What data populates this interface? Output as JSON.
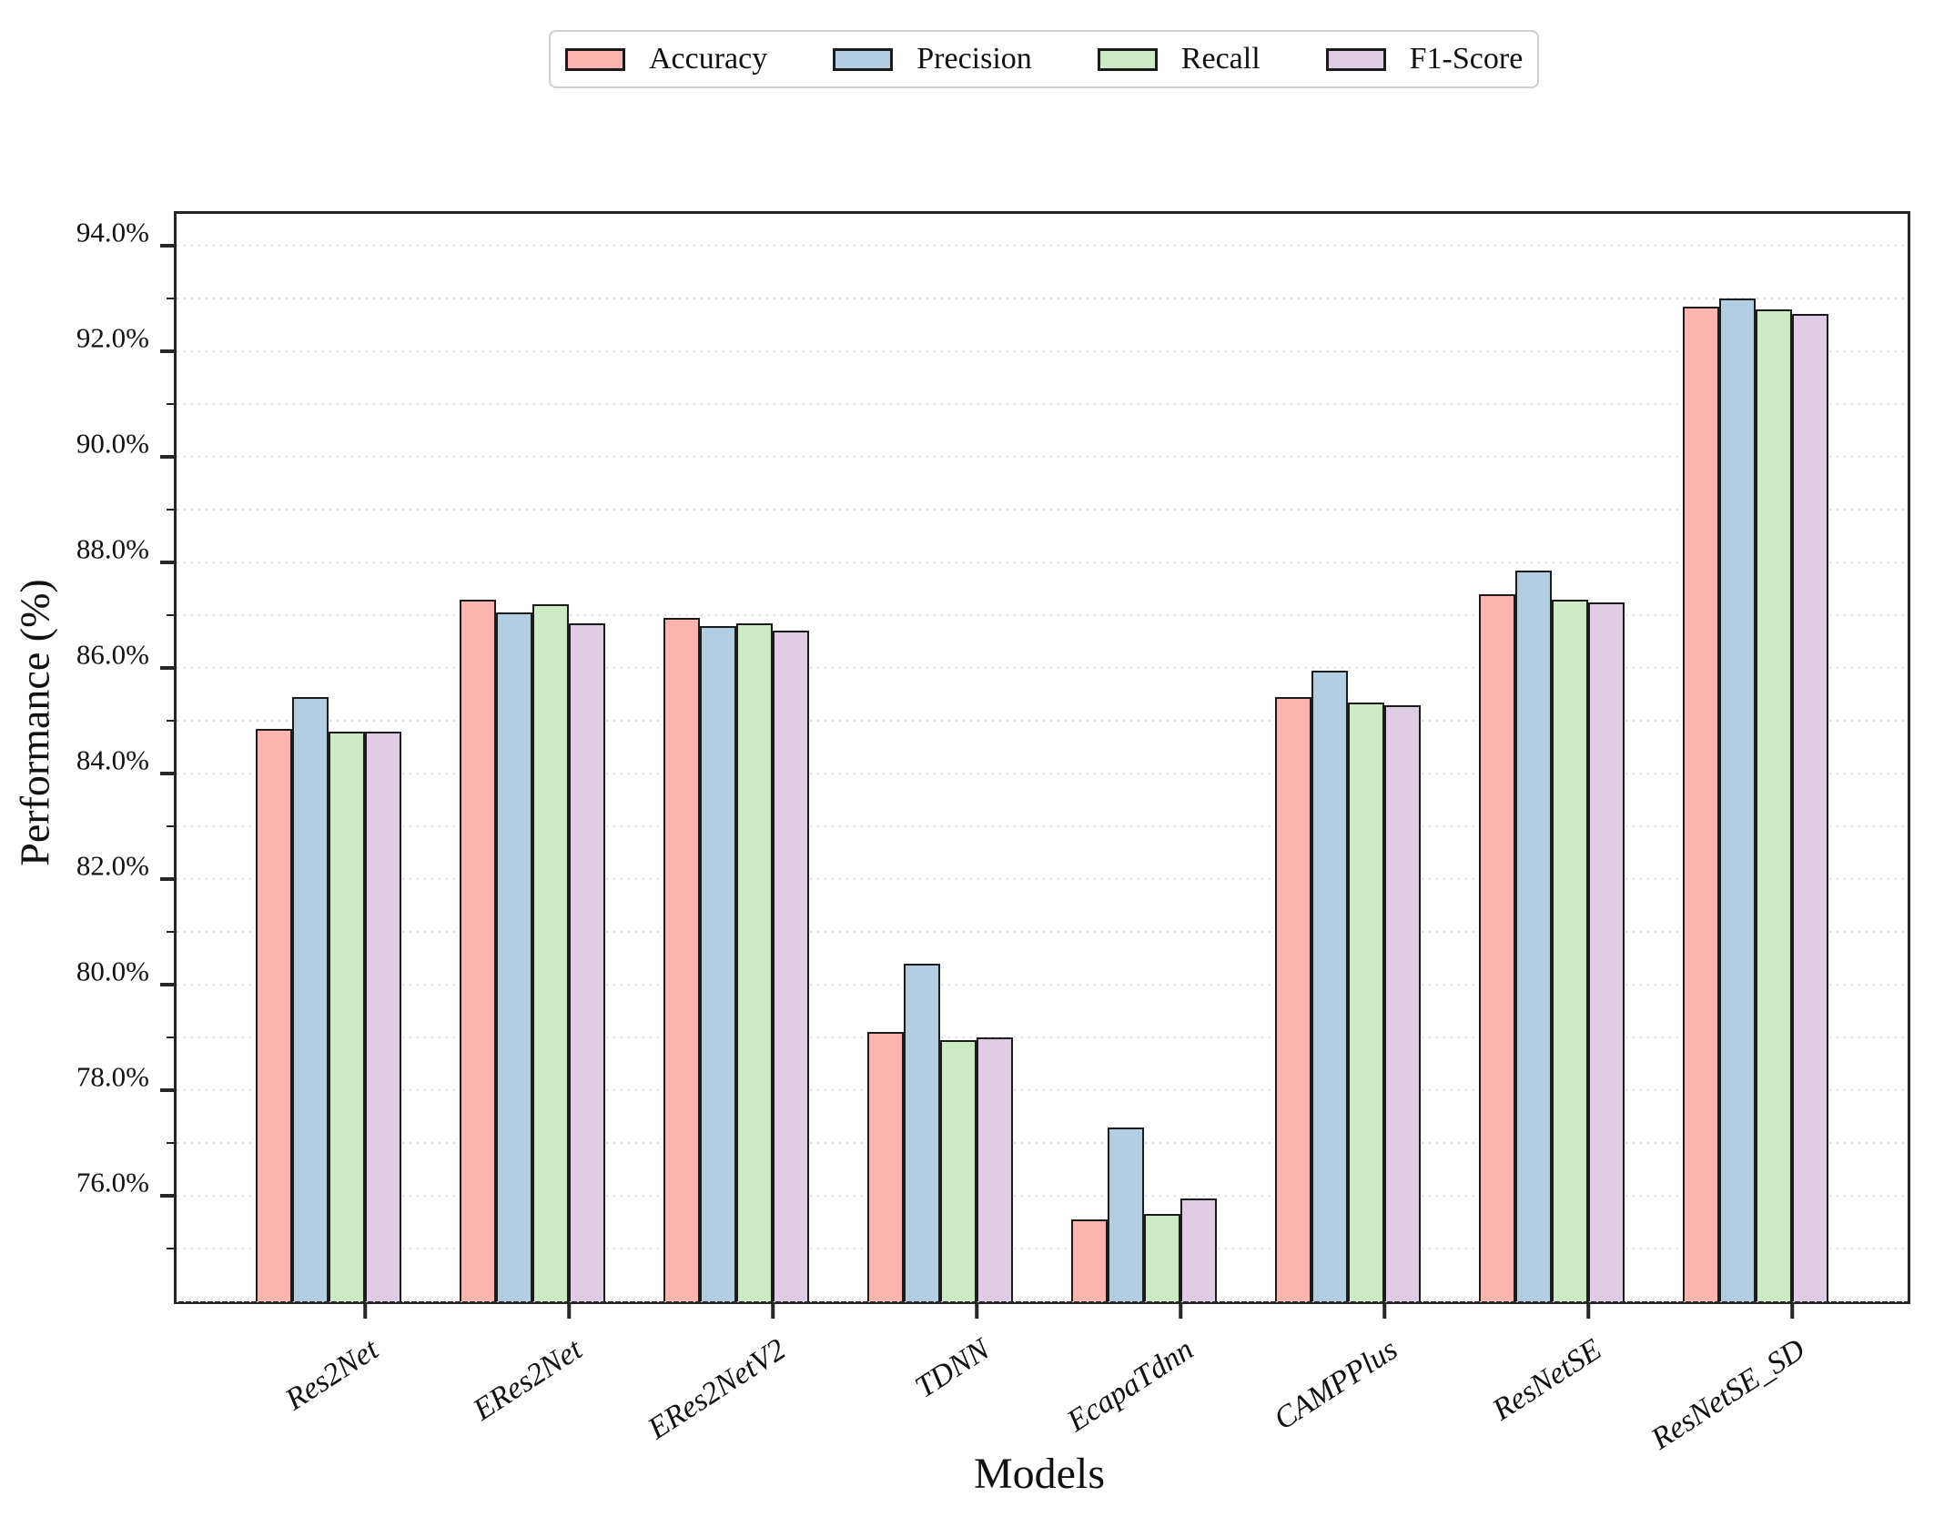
{
  "chart_data": {
    "type": "bar",
    "title": "",
    "xlabel": "Models",
    "ylabel": "Performance (%)",
    "categories": [
      "Res2Net",
      "ERes2Net",
      "ERes2NetV2",
      "TDNN",
      "EcapaTdnn",
      "CAMPPlus",
      "ResNetSE",
      "ResNetSE_SD"
    ],
    "series": [
      {
        "name": "Accuracy",
        "color": "#FBB4AE",
        "values": [
          84.85,
          87.3,
          86.95,
          79.1,
          75.55,
          85.45,
          87.4,
          92.85
        ]
      },
      {
        "name": "Precision",
        "color": "#B3CDE3",
        "values": [
          85.45,
          87.05,
          86.8,
          80.4,
          77.3,
          85.95,
          87.85,
          93.0
        ]
      },
      {
        "name": "Recall",
        "color": "#CCEBC5",
        "values": [
          84.8,
          87.2,
          86.85,
          78.95,
          75.65,
          85.35,
          87.3,
          92.8
        ]
      },
      {
        "name": "F1-Score",
        "color": "#DECBE4",
        "values": [
          84.8,
          86.85,
          86.7,
          79.0,
          75.95,
          85.3,
          87.25,
          92.7
        ]
      }
    ],
    "ylim": [
      74.0,
      94.6
    ],
    "ytick_labels": [
      "76.0%",
      "78.0%",
      "80.0%",
      "82.0%",
      "84.0%",
      "86.0%",
      "88.0%",
      "90.0%",
      "92.0%",
      "94.0%"
    ],
    "grid": "horizontal dotted lines every 1%",
    "grid_color": "#dcdcdc",
    "bar_edge_color": "#1b1b1b",
    "legend_position": "top center",
    "legend_labels": [
      "Accuracy",
      "Precision",
      "Recall",
      "F1-Score"
    ]
  }
}
